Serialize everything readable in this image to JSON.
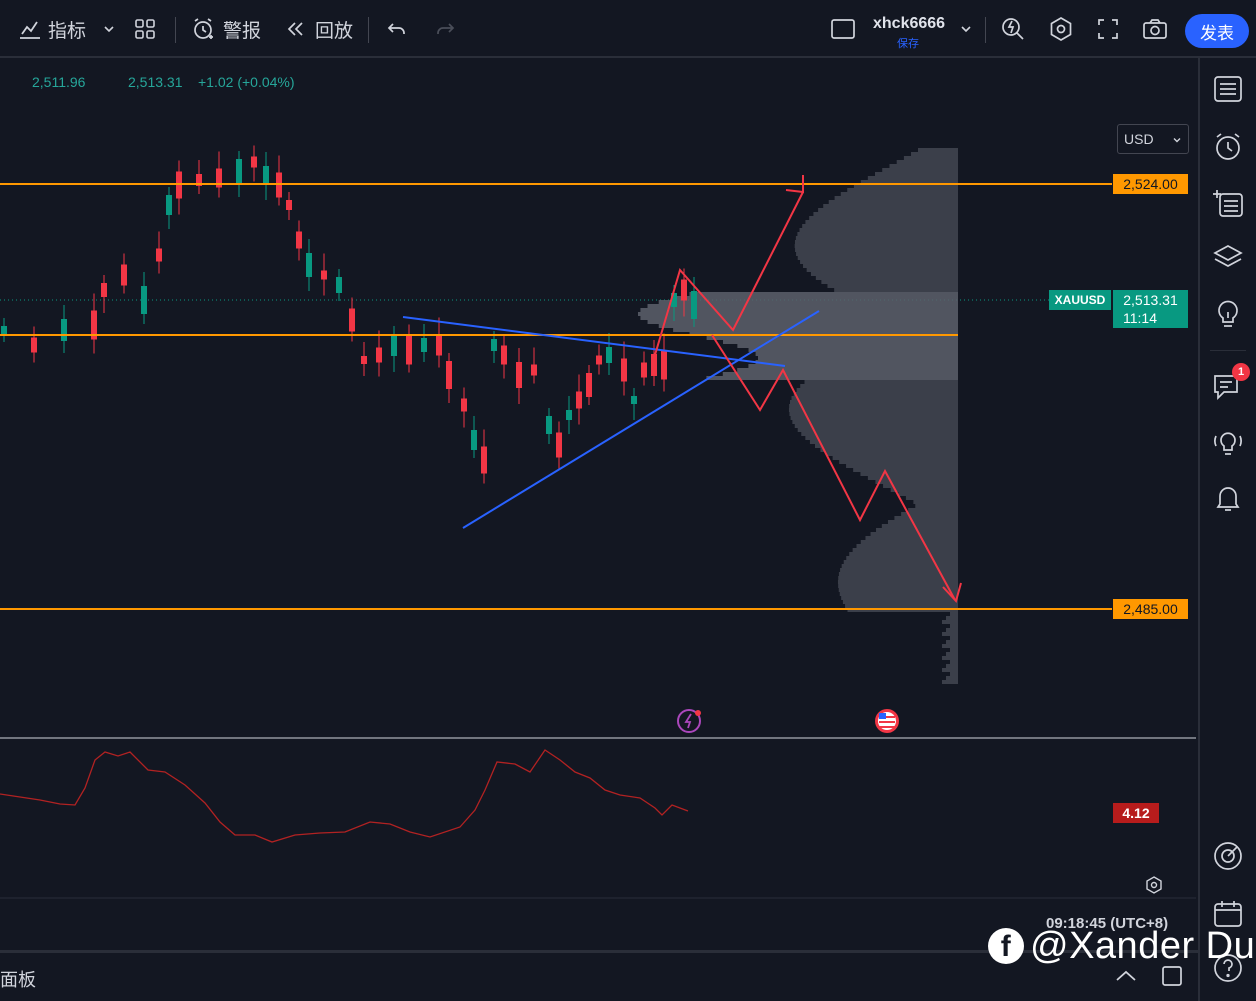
{
  "toolbar": {
    "indicators_label": "指标",
    "alerts_label": "警报",
    "replay_label": "回放",
    "username": "xhck6666",
    "save_label": "保存",
    "publish_label": "发表"
  },
  "legend": {
    "open_value": "2,511.96",
    "close_value": "2,513.31",
    "change": "+1.02 (+0.04%)"
  },
  "currency": "USD",
  "price_axis": {
    "upper_level": "2,524.00",
    "lower_level": "2,485.00",
    "symbol": "XAUUSD",
    "last_price": "2,513.31",
    "countdown": "11:14"
  },
  "indicator": {
    "value": "4.12"
  },
  "status": {
    "time": "09:18:45 (UTC+8)"
  },
  "bottom_panel_label": "面板",
  "watermark": {
    "fb_letter": "f",
    "text": "@Xander Du"
  },
  "notifications": {
    "chat_badge": "1"
  },
  "colors": {
    "background": "#131722",
    "up_candle": "#089981",
    "down_candle": "#f23645",
    "level_line": "#ff9800",
    "trend_line": "#2962ff",
    "projection": "#f23645",
    "accent": "#2962ff"
  }
}
